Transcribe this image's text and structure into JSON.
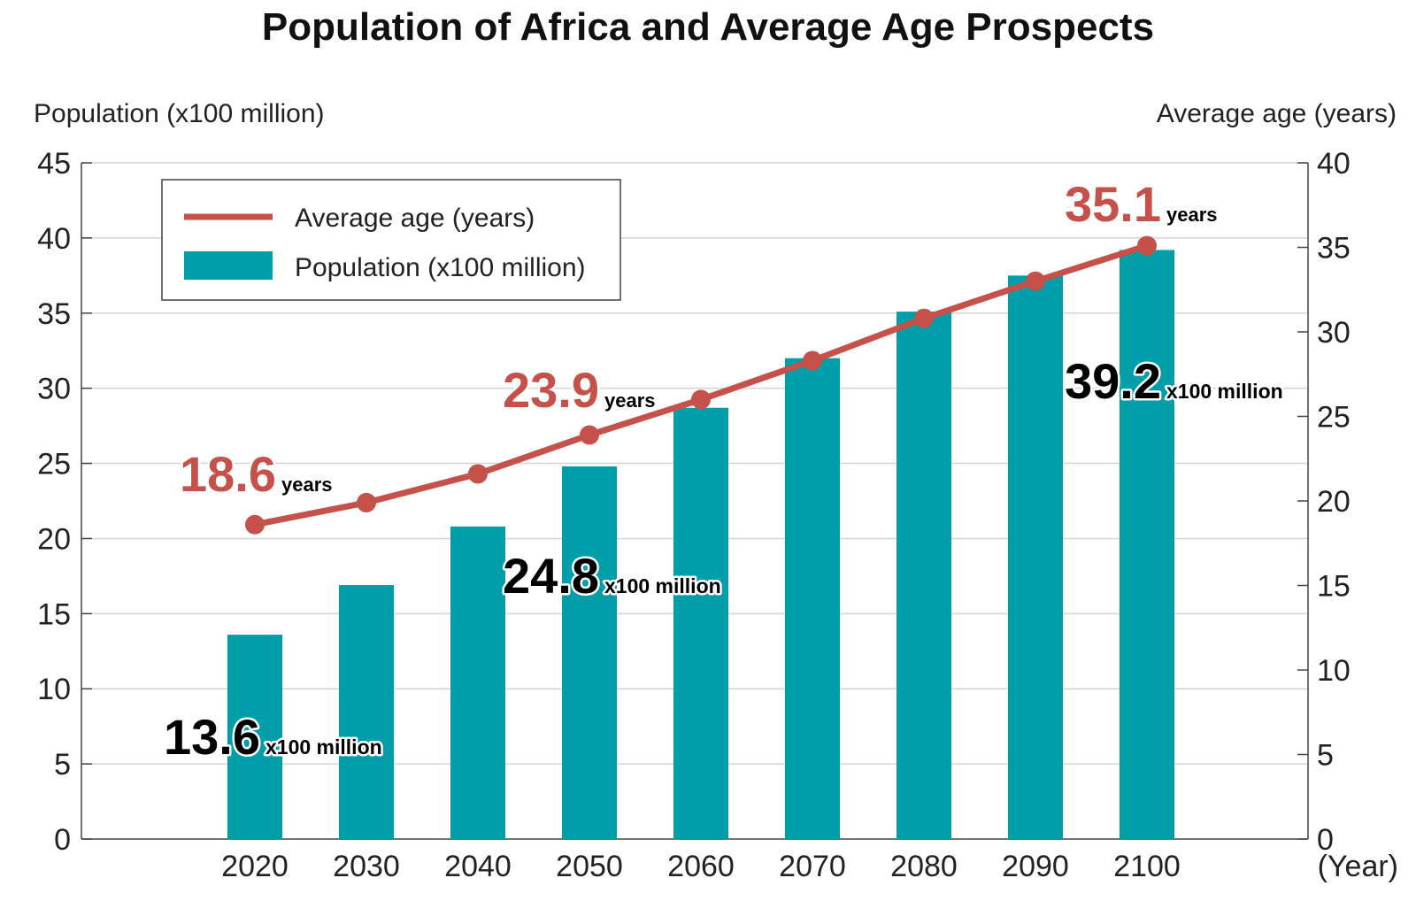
{
  "chart_data": {
    "type": "bar",
    "title": "Population of Africa and Average Age Prospects",
    "categories": [
      "2020",
      "2030",
      "2040",
      "2050",
      "2060",
      "2070",
      "2080",
      "2090",
      "2100"
    ],
    "xlabel": "(Year)",
    "ylabel_left": "Population (x100 million)",
    "ylabel_right": "Average age (years)",
    "ylim_left": [
      0,
      45
    ],
    "ylim_right": [
      0,
      40
    ],
    "yticks_left": [
      "0",
      "5",
      "10",
      "15",
      "20",
      "25",
      "30",
      "35",
      "40",
      "45"
    ],
    "yticks_right": [
      "0",
      "5",
      "10",
      "15",
      "20",
      "25",
      "30",
      "35",
      "40"
    ],
    "grid": true,
    "legend_position": "top-left",
    "series": [
      {
        "name": "Population (x100 million)",
        "type": "bar",
        "axis": "left",
        "color": "#009ea9",
        "values": [
          13.6,
          16.9,
          20.8,
          24.8,
          28.7,
          32.0,
          35.1,
          37.5,
          39.2
        ]
      },
      {
        "name": "Average age (years)",
        "type": "line",
        "axis": "right",
        "color": "#c5514a",
        "values": [
          18.6,
          19.9,
          21.6,
          23.9,
          26.0,
          28.3,
          30.8,
          33.0,
          35.1
        ]
      }
    ],
    "annotations": [
      {
        "series": "Population (x100 million)",
        "category": "2020",
        "value": "13.6",
        "unit": "x100 million"
      },
      {
        "series": "Population (x100 million)",
        "category": "2050",
        "value": "24.8",
        "unit": "x100 million"
      },
      {
        "series": "Population (x100 million)",
        "category": "2100",
        "value": "39.2",
        "unit": "x100 million"
      },
      {
        "series": "Average age (years)",
        "category": "2020",
        "value": "18.6",
        "unit": "years"
      },
      {
        "series": "Average age (years)",
        "category": "2050",
        "value": "23.9",
        "unit": "years"
      },
      {
        "series": "Average age (years)",
        "category": "2100",
        "value": "35.1",
        "unit": "years"
      }
    ]
  }
}
